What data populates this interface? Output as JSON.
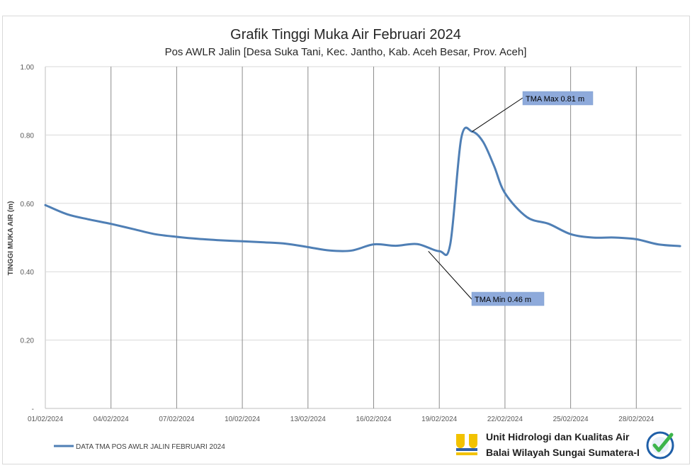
{
  "chart_data": {
    "type": "line",
    "title": "Grafik Tinggi Muka Air Februari 2024",
    "subtitle": "Pos AWLR Jalin [Desa Suka Tani, Kec. Jantho, Kab. Aceh Besar, Prov. Aceh]",
    "xlabel": "",
    "ylabel": "TINGGI MUKA AIR (m)",
    "ylim": [
      0,
      1.0
    ],
    "yticks": [
      "-",
      "0.20",
      "0.40",
      "0.60",
      "0.80",
      "1.00"
    ],
    "xticks": [
      "01/02/2024",
      "04/02/2024",
      "07/02/2024",
      "10/02/2024",
      "13/02/2024",
      "16/02/2024",
      "19/02/2024",
      "22/02/2024",
      "25/02/2024",
      "28/02/2024"
    ],
    "grid": true,
    "legend_position": "bottom-left",
    "series": [
      {
        "name": "DATA TMA POS AWLR JALIN FEBRUARI 2024",
        "color": "#4f7fb5",
        "x": [
          "01/02/2024",
          "02/02/2024",
          "03/02/2024",
          "04/02/2024",
          "05/02/2024",
          "06/02/2024",
          "07/02/2024",
          "08/02/2024",
          "09/02/2024",
          "10/02/2024",
          "11/02/2024",
          "12/02/2024",
          "13/02/2024",
          "14/02/2024",
          "15/02/2024",
          "16/02/2024",
          "17/02/2024",
          "18/02/2024",
          "19/02/2024",
          "19/02/2024 12:00",
          "20/02/2024",
          "20/02/2024 12:00",
          "21/02/2024",
          "21/02/2024 12:00",
          "22/02/2024",
          "23/02/2024",
          "24/02/2024",
          "25/02/2024",
          "26/02/2024",
          "27/02/2024",
          "28/02/2024",
          "29/02/2024",
          "01/03/2024"
        ],
        "values": [
          0.595,
          0.568,
          0.553,
          0.54,
          0.525,
          0.51,
          0.502,
          0.496,
          0.492,
          0.489,
          0.486,
          0.482,
          0.472,
          0.462,
          0.462,
          0.48,
          0.476,
          0.481,
          0.46,
          0.48,
          0.79,
          0.81,
          0.78,
          0.71,
          0.63,
          0.56,
          0.54,
          0.51,
          0.5,
          0.5,
          0.495,
          0.48,
          0.475
        ]
      }
    ],
    "annotations": [
      {
        "label": "TMA  Max 0.81 m",
        "at_x": "20/02/2024 12:00",
        "at_y": 0.81
      },
      {
        "label": "TMA  Min 0.46 m",
        "at_x": "18/02/2024 12:00",
        "at_y": 0.46
      }
    ],
    "colors": {
      "line": "#4f7fb5",
      "annotation_fill": "#8eaadb",
      "grid": "#c8c8c8"
    }
  },
  "footer": {
    "org_line1": "Unit Hidrologi dan Kualitas Air",
    "org_line2": "Balai Wilayah Sungai Sumatera-I",
    "logo_left": "pu-logo-icon",
    "logo_right": "iso-certified-badge-icon"
  }
}
